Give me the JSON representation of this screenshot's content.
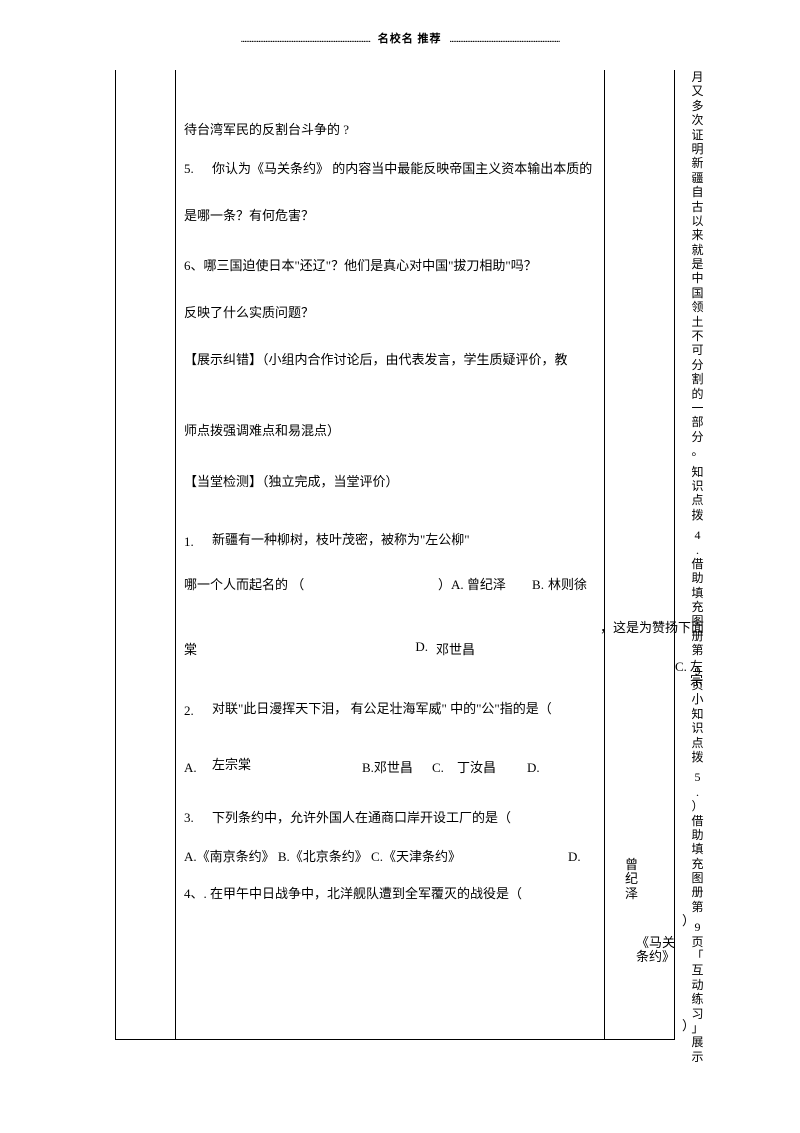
{
  "header": {
    "dots": "..........................................................................",
    "title": "名校名 推荐",
    "dots2": "..............................................................."
  },
  "content": {
    "p1": "待台湾军民的反割台斗争的 ?",
    "q5_num": "5.",
    "q5_txt": "你认为《马关条约》 的内容当中最能反映帝国主义资本输出本质的",
    "p2": "是哪一条？有何危害？",
    "p3": "6、哪三国迫使日本\"还辽\"？他们是真心对中国\"拔刀相助\"吗？",
    "p4": "反映了什么实质问题？",
    "p5": "【展示纠错】（小组内合作讨论后，由代表发言，学生质疑评价，教",
    "p6": "师点拨强调难点和易混点）",
    "p7": "【当堂检测】（独立完成，当堂评价）",
    "q1_num": "1.",
    "q1_txt": "新疆有一种柳树，枝叶茂密，被称为\"左公柳\"",
    "q1_tail": "，这是为赞扬下面",
    "q1_line2a": "哪一个人而起名的    （",
    "q1_line2b": "）A. 曾纪泽",
    "q1_optB_lbl": "B.",
    "q1_optB": "林则徐",
    "q1_optC_lbl": "C.",
    "q1_optC": "左宗",
    "q1_rong": "棠",
    "q1_optD_lbl": "D.",
    "q1_optD": "邓世昌",
    "q2_num": "2.",
    "q2_txt": "对联\"此日漫挥天下泪， 有公足壮海军威\" 中的\"公\"指的是（",
    "q2_A_lbl": "A.",
    "q2_A": "左宗棠",
    "q2_B": "B.邓世昌",
    "q2_C_lbl": "C.",
    "q2_C": "丁汝昌",
    "q2_D_lbl": "D.",
    "q2_D": "曾纪泽",
    "q3_num": "3.",
    "q3_txt": "下列条约中，允许外国人在通商口岸开设工厂的是（",
    "q3_paren": "）",
    "q3_opts": "A.《南京条约》 B.《北京条约》  C.《天津条约》",
    "q3_D_lbl": "D.",
    "q3_D": "《马关条约》",
    "q4": "4、. 在甲午中日战争中，北洋舰队遭到全军覆灭的战役是（",
    "q4_paren": "）"
  },
  "side": {
    "seg1": "月又多次证明新疆自古以来就是中国领土不可分割的一部分。",
    "seg2": "知识点拨",
    "seg3": "4.借助填充图册第",
    "seg4": "9页小知识点拨",
    "seg5": "5.）借助填充图册第",
    "seg6": "9页「互动练习」展示"
  }
}
